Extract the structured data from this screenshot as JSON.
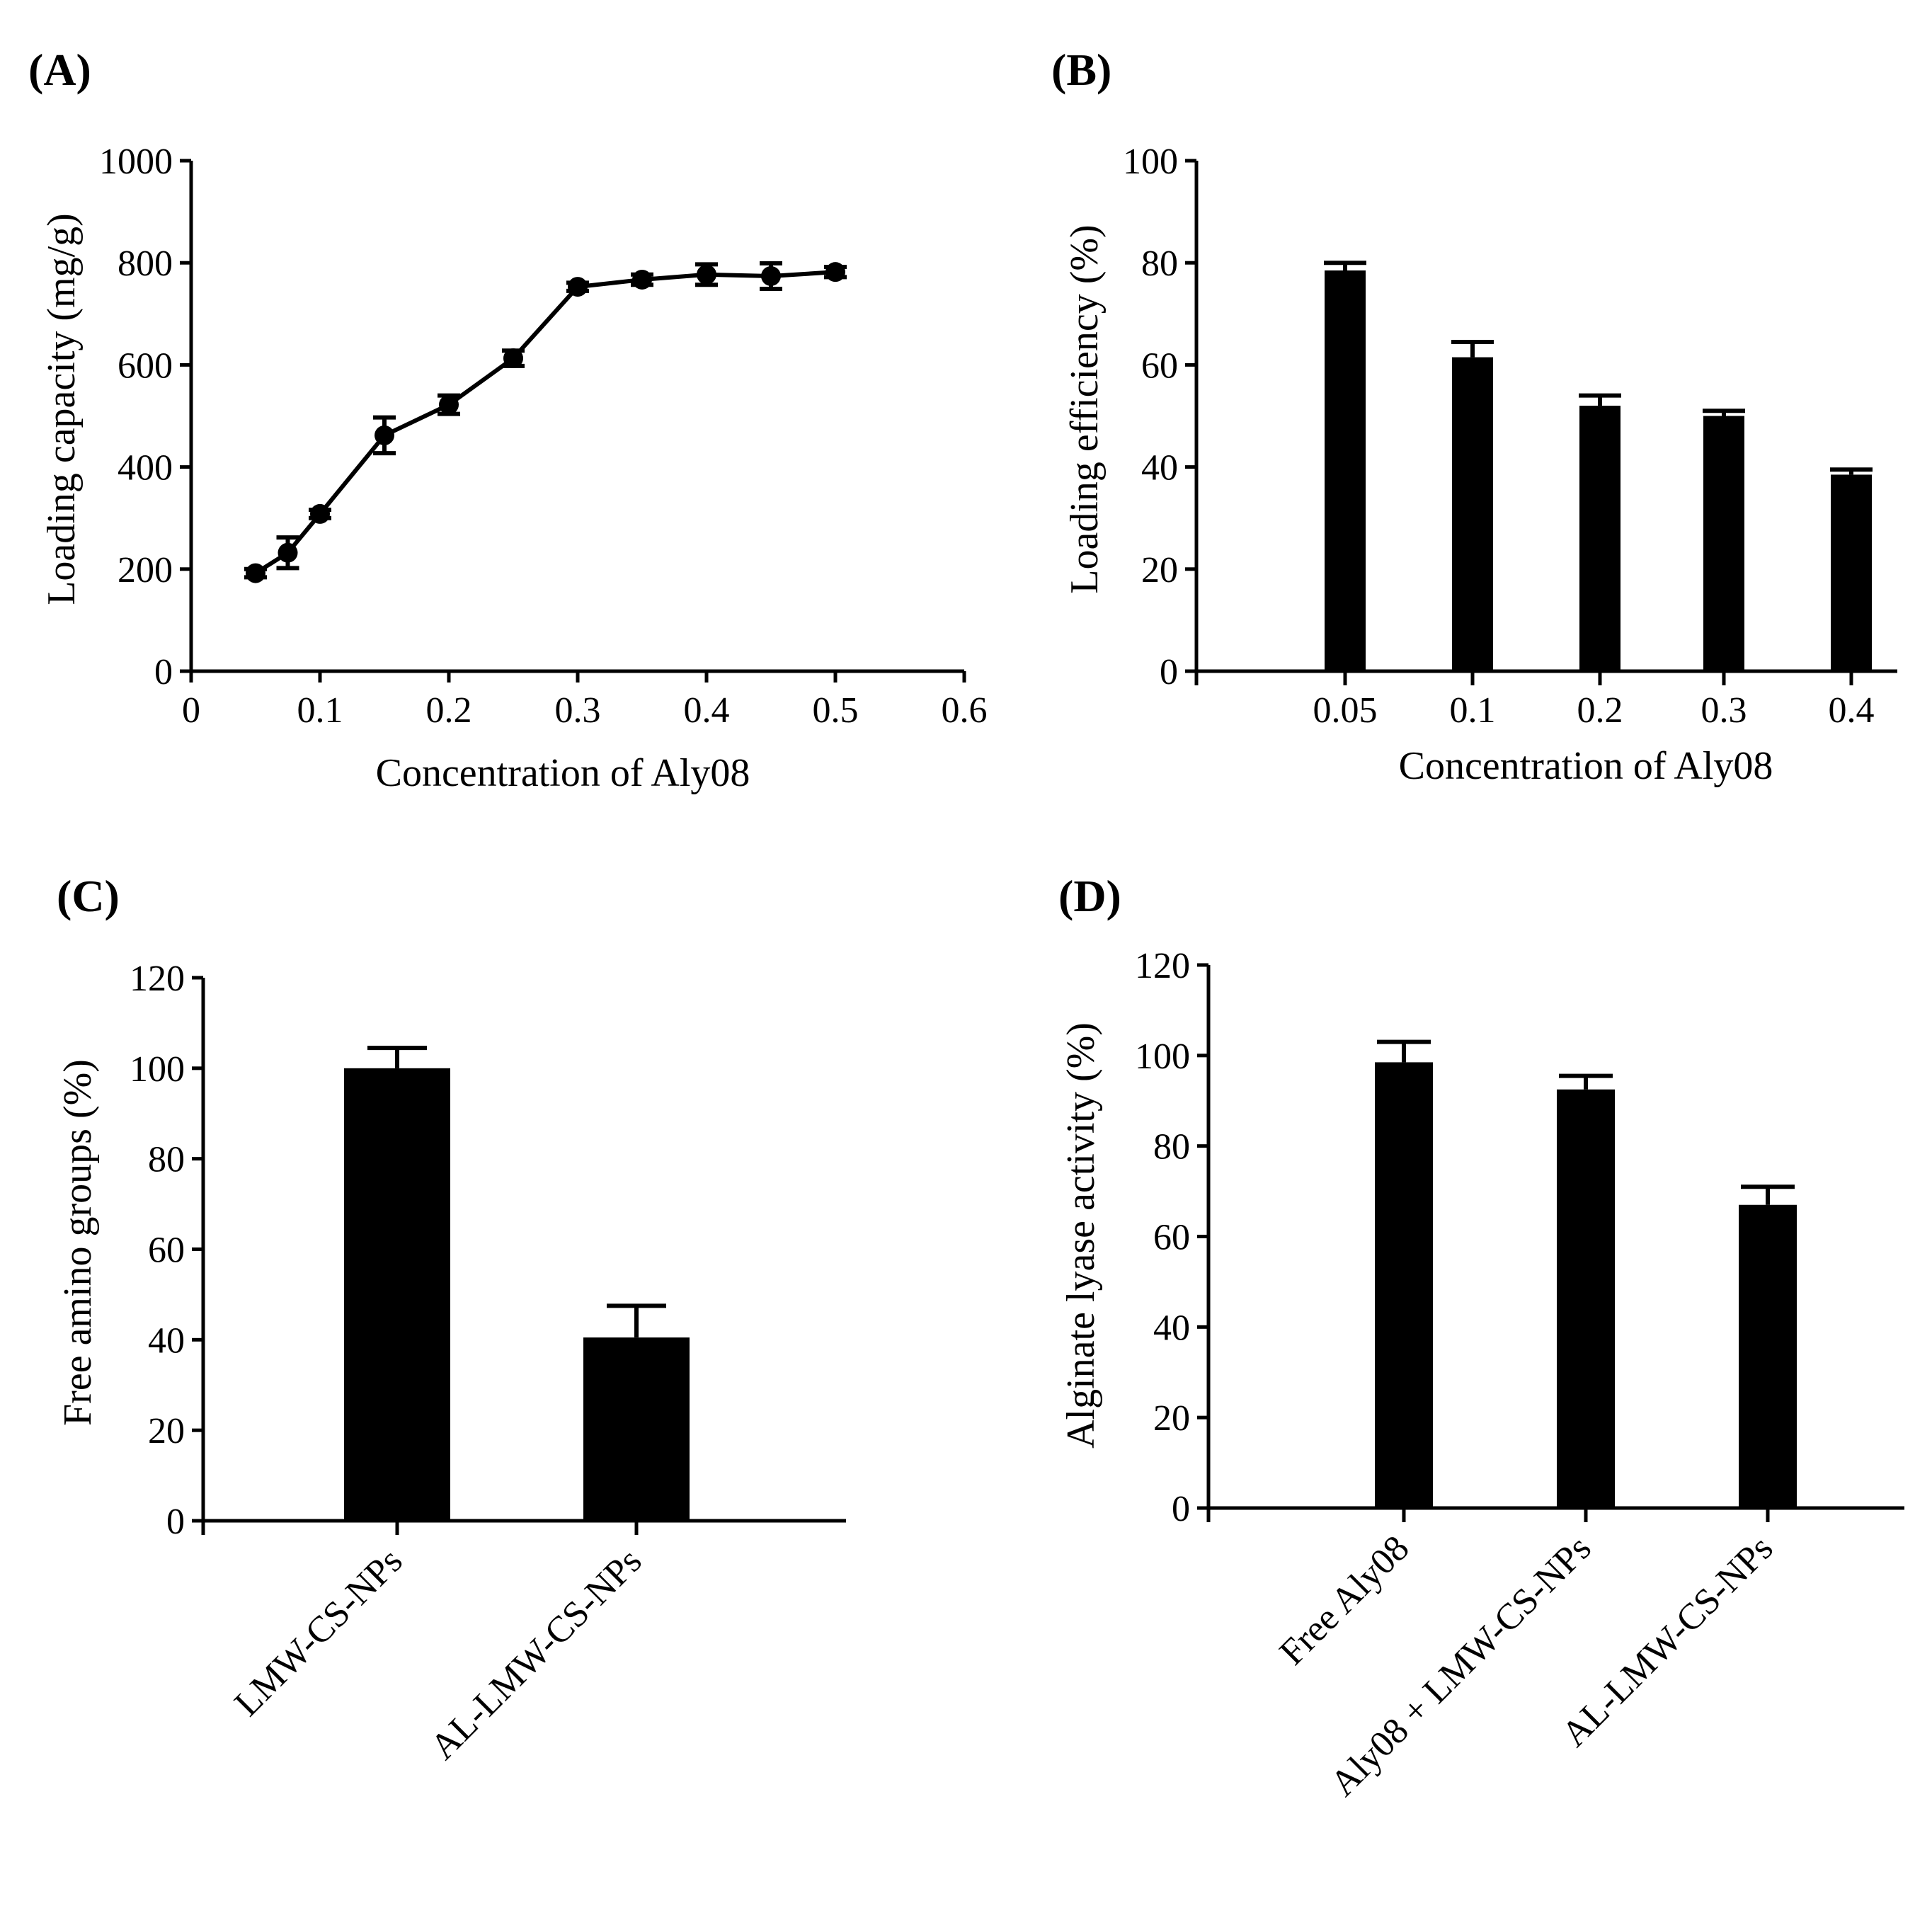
{
  "chart_data": [
    {
      "panel": "(A)",
      "type": "line",
      "xlabel": "Concentration of Aly08",
      "ylabel": "Loading capacity (mg/g)",
      "xlim": [
        0,
        0.6
      ],
      "ylim": [
        0,
        1000
      ],
      "xticks": [
        0,
        0.1,
        0.2,
        0.3,
        0.4,
        0.5,
        0.6
      ],
      "xtick_labels": [
        "0",
        "0.1",
        "0.2",
        "0.3",
        "0.4",
        "0.5",
        "0.6"
      ],
      "yticks": [
        0,
        200,
        400,
        600,
        800,
        1000
      ],
      "ytick_labels": [
        "0",
        "200",
        "400",
        "600",
        "800",
        "1000"
      ],
      "x": [
        0.05,
        0.075,
        0.1,
        0.15,
        0.2,
        0.25,
        0.3,
        0.35,
        0.4,
        0.45,
        0.5
      ],
      "values": [
        192,
        232,
        308,
        462,
        522,
        613,
        753,
        767,
        777,
        774,
        782
      ],
      "errors": [
        8,
        30,
        8,
        35,
        18,
        15,
        8,
        10,
        20,
        25,
        10
      ]
    },
    {
      "panel": "(B)",
      "type": "bar",
      "xlabel": "Concentration of Aly08",
      "ylabel": "Loading efficiency (%)",
      "ylim": [
        0,
        100
      ],
      "yticks": [
        0,
        20,
        40,
        60,
        80,
        100
      ],
      "ytick_labels": [
        "0",
        "20",
        "40",
        "60",
        "80",
        "100"
      ],
      "categories": [
        "0.05",
        "0.1",
        "0.2",
        "0.3",
        "0.4"
      ],
      "values": [
        78.5,
        61.5,
        52,
        50,
        38.5
      ],
      "errors": [
        1.5,
        3,
        2,
        1,
        1
      ]
    },
    {
      "panel": "(C)",
      "type": "bar",
      "xlabel": "",
      "ylabel": "Free amino groups (%)",
      "ylim": [
        0,
        120
      ],
      "yticks": [
        0,
        20,
        40,
        60,
        80,
        100,
        120
      ],
      "ytick_labels": [
        "0",
        "20",
        "40",
        "60",
        "80",
        "100",
        "120"
      ],
      "categories": [
        "LMW-CS-NPs",
        "AL-LMW-CS-NPs"
      ],
      "values": [
        100,
        40.5
      ],
      "errors": [
        4.5,
        7
      ]
    },
    {
      "panel": "(D)",
      "type": "bar",
      "xlabel": "",
      "ylabel": "Alginate lyase activity (%)",
      "ylim": [
        0,
        120
      ],
      "yticks": [
        0,
        20,
        40,
        60,
        80,
        100,
        120
      ],
      "ytick_labels": [
        "0",
        "20",
        "40",
        "60",
        "80",
        "100",
        "120"
      ],
      "categories": [
        "Free Aly08",
        "Aly08 + LMW-CS-NPs",
        "AL-LMW-CS-NPs"
      ],
      "values": [
        98.5,
        92.5,
        67
      ],
      "errors": [
        4.5,
        3,
        4
      ]
    }
  ]
}
